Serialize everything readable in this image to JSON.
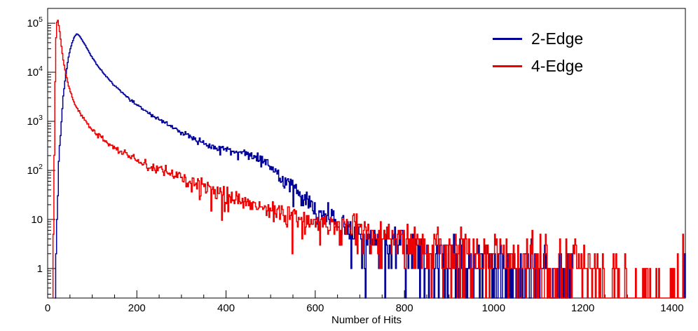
{
  "chart_data": {
    "type": "line",
    "title": "",
    "xlabel": "Number of Hits",
    "ylabel": "",
    "x_axis": {
      "min": 0,
      "max": 1430,
      "major_ticks": [
        0,
        200,
        400,
        600,
        800,
        1000,
        1200,
        1400
      ],
      "minor_tick_step": 50
    },
    "y_axis": {
      "scale": "log",
      "min": 0.25,
      "max": 200000,
      "decade_ticks": [
        1,
        10,
        100,
        1000,
        10000,
        100000
      ],
      "decade_labels": [
        "1",
        "10",
        "10^2",
        "10^3",
        "10^4",
        "10^5"
      ]
    },
    "grid": false,
    "legend": {
      "position": "top-right",
      "entries": [
        {
          "label": "2-Edge",
          "color": "#000099"
        },
        {
          "label": "4-Edge",
          "color": "#ee0000"
        }
      ]
    },
    "noise_scale": 1.6,
    "noise_seed": 1337,
    "series": [
      {
        "name": "2-Edge",
        "color": "#000099",
        "bin_width": 2,
        "x_start": 16,
        "x_end": 1176,
        "extra_spikes": [
          [
            1428,
            2
          ]
        ],
        "log10_anchors": [
          [
            16,
            -0.5
          ],
          [
            20,
            0.6
          ],
          [
            25,
            2.2
          ],
          [
            30,
            2.9
          ],
          [
            35,
            3.5
          ],
          [
            40,
            3.9
          ],
          [
            45,
            4.2
          ],
          [
            50,
            4.45
          ],
          [
            55,
            4.6
          ],
          [
            60,
            4.72
          ],
          [
            65,
            4.78
          ],
          [
            70,
            4.76
          ],
          [
            80,
            4.62
          ],
          [
            90,
            4.46
          ],
          [
            100,
            4.3
          ],
          [
            115,
            4.1
          ],
          [
            130,
            3.93
          ],
          [
            150,
            3.73
          ],
          [
            170,
            3.56
          ],
          [
            200,
            3.34
          ],
          [
            230,
            3.15
          ],
          [
            260,
            2.98
          ],
          [
            300,
            2.78
          ],
          [
            340,
            2.6
          ],
          [
            380,
            2.47
          ],
          [
            420,
            2.38
          ],
          [
            450,
            2.33
          ],
          [
            470,
            2.27
          ],
          [
            490,
            2.15
          ],
          [
            510,
            1.98
          ],
          [
            530,
            1.8
          ],
          [
            550,
            1.62
          ],
          [
            575,
            1.42
          ],
          [
            600,
            1.22
          ],
          [
            625,
            1.07
          ],
          [
            650,
            0.97
          ],
          [
            680,
            0.85
          ],
          [
            710,
            0.75
          ],
          [
            750,
            0.6
          ],
          [
            800,
            0.45
          ],
          [
            850,
            0.35
          ],
          [
            900,
            0.28
          ],
          [
            950,
            0.2
          ],
          [
            1000,
            0.12
          ],
          [
            1050,
            0.05
          ],
          [
            1100,
            0.0
          ],
          [
            1150,
            -0.1
          ],
          [
            1176,
            -0.2
          ]
        ]
      },
      {
        "name": "4-Edge",
        "color": "#ee0000",
        "bin_width": 2,
        "x_start": 12,
        "x_end": 1430,
        "extra_spikes": [
          [
            1424,
            5
          ]
        ],
        "log10_anchors": [
          [
            12,
            -0.3
          ],
          [
            14,
            1.5
          ],
          [
            16,
            3.2
          ],
          [
            18,
            4.4
          ],
          [
            20,
            5.0
          ],
          [
            23,
            5.06
          ],
          [
            26,
            4.9
          ],
          [
            30,
            4.6
          ],
          [
            35,
            4.25
          ],
          [
            40,
            4.0
          ],
          [
            45,
            3.8
          ],
          [
            50,
            3.62
          ],
          [
            60,
            3.38
          ],
          [
            70,
            3.2
          ],
          [
            85,
            3.0
          ],
          [
            100,
            2.83
          ],
          [
            120,
            2.65
          ],
          [
            140,
            2.52
          ],
          [
            160,
            2.4
          ],
          [
            180,
            2.3
          ],
          [
            200,
            2.2
          ],
          [
            230,
            2.08
          ],
          [
            260,
            1.97
          ],
          [
            300,
            1.83
          ],
          [
            340,
            1.68
          ],
          [
            380,
            1.55
          ],
          [
            420,
            1.44
          ],
          [
            460,
            1.32
          ],
          [
            500,
            1.2
          ],
          [
            540,
            1.1
          ],
          [
            580,
            1.0
          ],
          [
            620,
            0.93
          ],
          [
            660,
            0.86
          ],
          [
            700,
            0.78
          ],
          [
            750,
            0.68
          ],
          [
            800,
            0.6
          ],
          [
            850,
            0.52
          ],
          [
            900,
            0.45
          ],
          [
            950,
            0.38
          ],
          [
            1000,
            0.3
          ],
          [
            1050,
            0.22
          ],
          [
            1100,
            0.15
          ],
          [
            1150,
            0.05
          ],
          [
            1200,
            -0.05
          ],
          [
            1260,
            -0.3
          ],
          [
            1320,
            -0.55
          ],
          [
            1380,
            -0.6
          ],
          [
            1430,
            -0.45
          ]
        ]
      }
    ]
  }
}
